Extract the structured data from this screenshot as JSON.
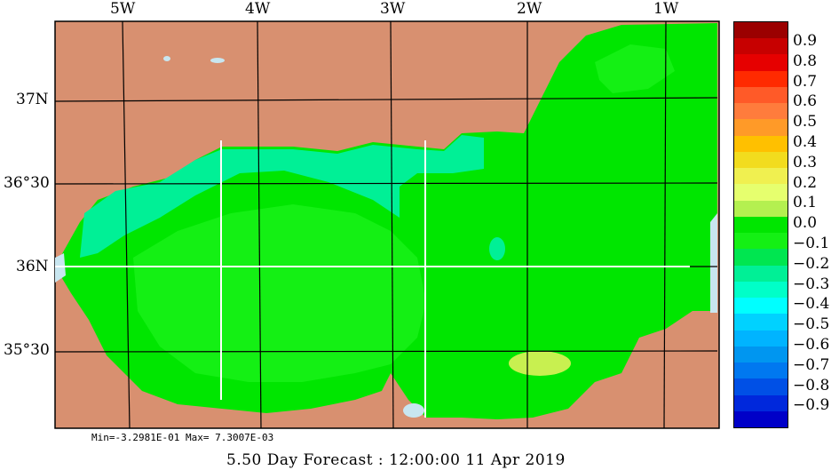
{
  "axes": {
    "longitude_labels": [
      "5W",
      "4W",
      "3W",
      "2W",
      "1W"
    ],
    "latitude_labels": [
      "37N",
      "36°30",
      "36N",
      "35°30"
    ]
  },
  "colorbar": {
    "labels": [
      "0.9",
      "0.8",
      "0.7",
      "0.6",
      "0.5",
      "0.4",
      "0.3",
      "0.2",
      "0.1",
      "0.0",
      "−0.1",
      "−0.2",
      "−0.3",
      "−0.4",
      "−0.5",
      "−0.6",
      "−0.7",
      "−0.8",
      "−0.9"
    ],
    "colors": [
      "#9b0000",
      "#c70000",
      "#e60000",
      "#ff2a00",
      "#ff5a28",
      "#ff7c3c",
      "#ff9a28",
      "#ffc000",
      "#f2dc1e",
      "#f0f050",
      "#e6ff6e",
      "#b4f050",
      "#00e600",
      "#14f014",
      "#00e650",
      "#00f096",
      "#00ffc8",
      "#00ffff",
      "#00d2ff",
      "#00b4ff",
      "#0096f0",
      "#0078f0",
      "#0050e6",
      "#0028dc",
      "#0000c8"
    ]
  },
  "colors": {
    "land": "#d89070",
    "sea_main": "#00e600",
    "sea_light": "#14f014",
    "sea_teal": "#00f096",
    "shallow": "#c8e6f0",
    "anomaly": "#c8f050"
  },
  "stats": "Min=-3.2981E-01  Max= 7.3007E-03",
  "footer": "5.50 Day Forecast : 12:00:00  11 Apr 2019"
}
